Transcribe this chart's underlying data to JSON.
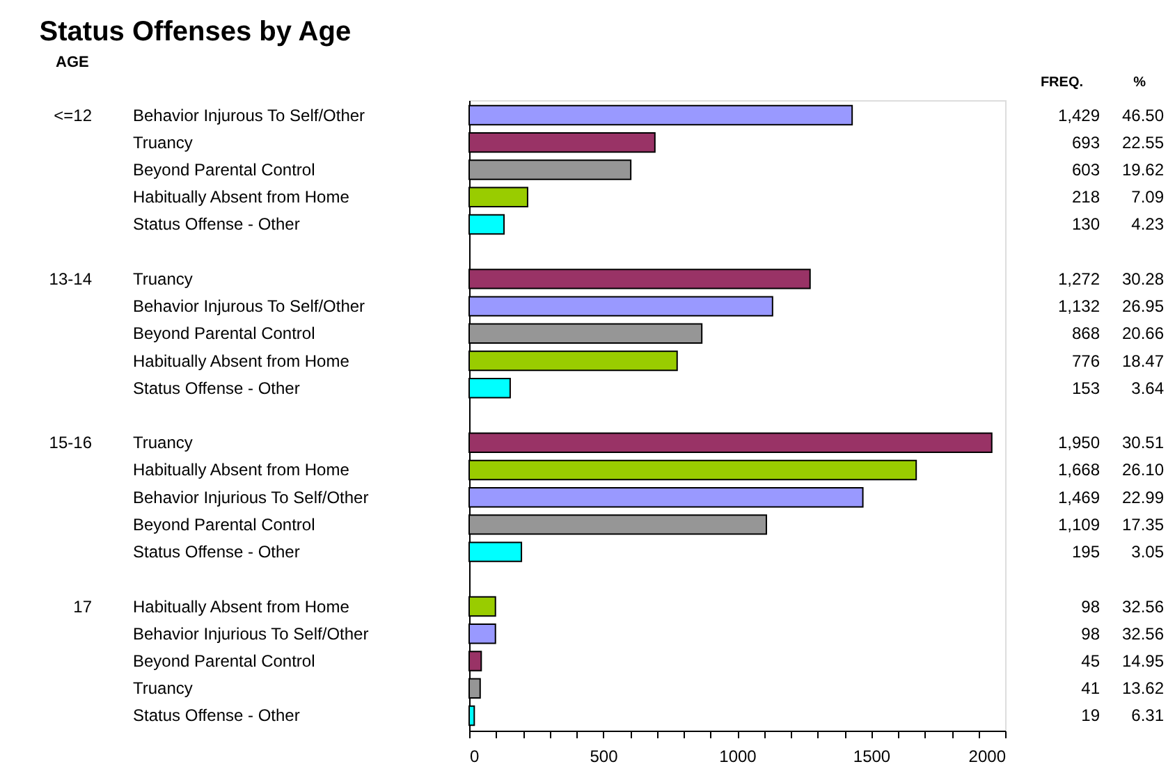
{
  "chart_data": {
    "type": "bar",
    "orientation": "horizontal",
    "title": "Status Offenses by Age",
    "categories": [
      "Behavior Injurous To Self/Other",
      "Truancy",
      "Beyond Parental Control",
      "Habitually Absent from Home",
      "Status Offense - Other",
      null,
      "Truancy",
      "Behavior Injurous To Self/Other",
      "Beyond Parental Control",
      "Habitually Absent from Home",
      "Status Offense - Other",
      null,
      "Truancy",
      "Habitually Absent from Home",
      "Behavior Injurious To Self/Other",
      "Beyond Parental Control",
      "Status Offense - Other",
      null,
      "Habitually Absent from Home",
      "Behavior Injurious To Self/Other",
      "Beyond Parental Control",
      "Truancy",
      "Status Offense - Other"
    ],
    "values": [
      1429,
      693,
      603,
      218,
      130,
      null,
      1272,
      1132,
      868,
      776,
      153,
      null,
      1950,
      1668,
      1469,
      1109,
      195,
      null,
      98,
      98,
      45,
      41,
      19
    ],
    "value_labels": [
      "1,429",
      "693",
      "603",
      "218",
      "130",
      null,
      "1,272",
      "1,132",
      "868",
      "776",
      "153",
      null,
      "1,950",
      "1,668",
      "1,469",
      "1,109",
      "195",
      null,
      "98",
      "98",
      "45",
      "41",
      "19"
    ],
    "colors": [
      "#9999ff",
      "#993366",
      "#969696",
      "#99cc00",
      "#00ffff",
      null,
      "#993366",
      "#9999ff",
      "#969696",
      "#99cc00",
      "#00ffff",
      null,
      "#993366",
      "#99cc00",
      "#9999ff",
      "#969696",
      "#00ffff",
      null,
      "#99cc00",
      "#9999ff",
      "#993366",
      "#969696",
      "#00ffff"
    ],
    "annotations": [
      "AGE",
      "FREQ.",
      "%",
      "<=12",
      "13-14",
      "15-16",
      "17",
      "46.50",
      "22.55",
      "19.62",
      "7.09",
      "4.23",
      "30.28",
      "26.95",
      "20.66",
      "18.47",
      "3.64",
      "30.51",
      "26.10",
      "22.99",
      "17.35",
      "3.05",
      "32.56",
      "32.56",
      "14.95",
      "13.62",
      "6.31"
    ],
    "xlim": [
      0,
      2000
    ],
    "xticks": [
      0,
      {
        "value": 100,
        "label": null
      },
      {
        "value": 200,
        "label": null
      },
      {
        "value": 300,
        "label": null
      },
      {
        "value": 400,
        "label": null
      },
      500,
      {
        "value": 600,
        "label": null
      },
      {
        "value": 700,
        "label": null
      },
      {
        "value": 800,
        "label": null
      },
      {
        "value": 900,
        "label": null
      },
      1000,
      {
        "value": 1100,
        "label": null
      },
      {
        "value": 1200,
        "label": null
      },
      {
        "value": 1300,
        "label": null
      },
      {
        "value": 1400,
        "label": null
      },
      1500,
      {
        "value": 1600,
        "label": null
      },
      {
        "value": 1700,
        "label": null
      },
      {
        "value": 1800,
        "label": null
      },
      {
        "value": 1900,
        "label": null
      },
      2000
    ],
    "grid": false
  }
}
